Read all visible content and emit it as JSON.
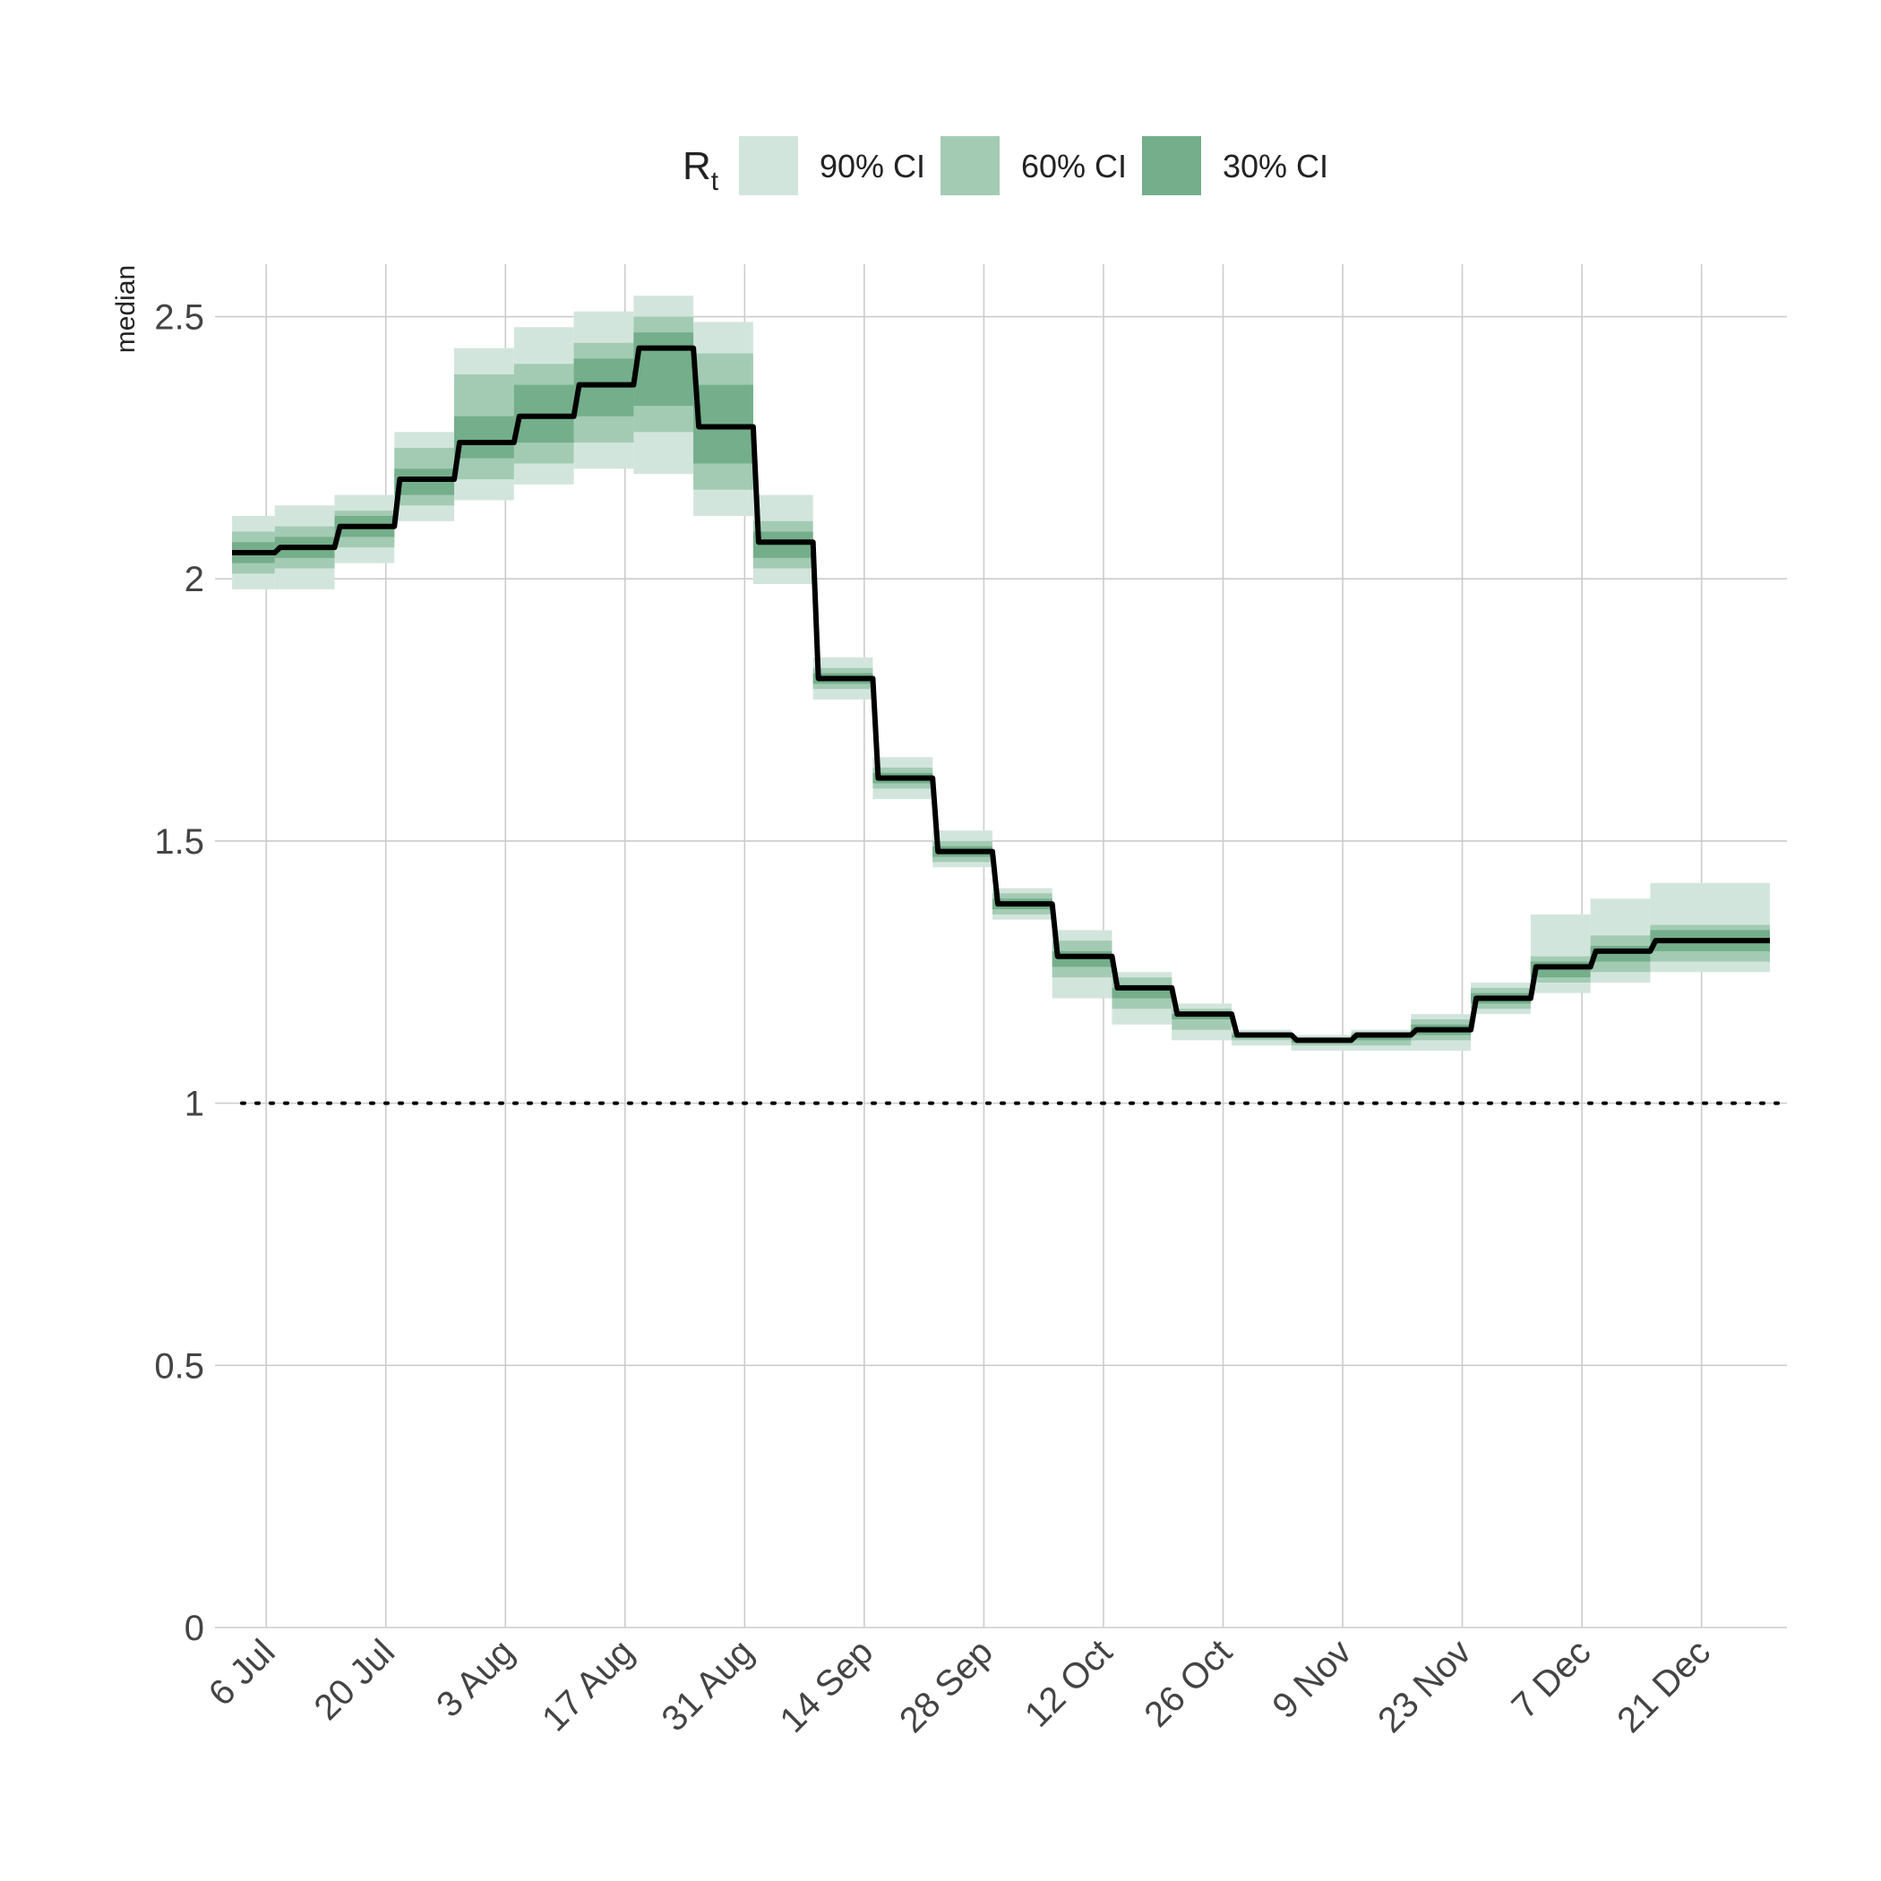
{
  "chart_data": {
    "type": "area",
    "ylabel": "median",
    "ylim": [
      0,
      2.6
    ],
    "yticks": [
      0,
      0.5,
      1,
      1.5,
      2,
      2.5
    ],
    "ytick_labels": [
      "0",
      "0.5",
      "1",
      "1.5",
      "2",
      "2.5"
    ],
    "x_range": [
      "2020-06-30",
      "2020-12-31"
    ],
    "xticks": [
      {
        "date": "2020-07-06",
        "label": "6 Jul"
      },
      {
        "date": "2020-07-20",
        "label": "20 Jul"
      },
      {
        "date": "2020-08-03",
        "label": "3 Aug"
      },
      {
        "date": "2020-08-17",
        "label": "17 Aug"
      },
      {
        "date": "2020-08-31",
        "label": "31 Aug"
      },
      {
        "date": "2020-09-14",
        "label": "14 Sep"
      },
      {
        "date": "2020-09-28",
        "label": "28 Sep"
      },
      {
        "date": "2020-10-12",
        "label": "12 Oct"
      },
      {
        "date": "2020-10-26",
        "label": "26 Oct"
      },
      {
        "date": "2020-11-09",
        "label": "9 Nov"
      },
      {
        "date": "2020-11-23",
        "label": "23 Nov"
      },
      {
        "date": "2020-12-07",
        "label": "7 Dec"
      },
      {
        "date": "2020-12-21",
        "label": "21 Dec"
      }
    ],
    "grid": true,
    "reference_line": {
      "y": 1,
      "style": "dotted"
    },
    "legend": {
      "position": "top",
      "title": "R",
      "title_subscript": "t",
      "entries": [
        {
          "label": "90% CI",
          "color": "#d2e5dc"
        },
        {
          "label": "60% CI",
          "color": "#a3cbb4"
        },
        {
          "label": "30% CI",
          "color": "#74ae8a"
        }
      ]
    },
    "colors": {
      "median_line": "#000000",
      "band_90": "#d2e5dc",
      "band_60": "#a3cbb4",
      "band_30": "#74ae8a",
      "grid": "#cccccc"
    },
    "segments": [
      {
        "start": "2020-07-02",
        "end": "2020-07-07",
        "median": 2.05,
        "ci90": [
          1.98,
          2.12
        ],
        "ci60": [
          2.01,
          2.09
        ],
        "ci30": [
          2.03,
          2.07
        ]
      },
      {
        "start": "2020-07-07",
        "end": "2020-07-14",
        "median": 2.06,
        "ci90": [
          1.98,
          2.14
        ],
        "ci60": [
          2.02,
          2.1
        ],
        "ci30": [
          2.04,
          2.08
        ]
      },
      {
        "start": "2020-07-14",
        "end": "2020-07-21",
        "median": 2.1,
        "ci90": [
          2.03,
          2.16
        ],
        "ci60": [
          2.06,
          2.13
        ],
        "ci30": [
          2.08,
          2.12
        ]
      },
      {
        "start": "2020-07-21",
        "end": "2020-07-28",
        "median": 2.19,
        "ci90": [
          2.11,
          2.28
        ],
        "ci60": [
          2.14,
          2.25
        ],
        "ci30": [
          2.16,
          2.21
        ]
      },
      {
        "start": "2020-07-28",
        "end": "2020-08-04",
        "median": 2.26,
        "ci90": [
          2.15,
          2.44
        ],
        "ci60": [
          2.19,
          2.39
        ],
        "ci30": [
          2.23,
          2.31
        ]
      },
      {
        "start": "2020-08-04",
        "end": "2020-08-11",
        "median": 2.31,
        "ci90": [
          2.18,
          2.48
        ],
        "ci60": [
          2.22,
          2.41
        ],
        "ci30": [
          2.26,
          2.37
        ]
      },
      {
        "start": "2020-08-11",
        "end": "2020-08-18",
        "median": 2.37,
        "ci90": [
          2.21,
          2.51
        ],
        "ci60": [
          2.26,
          2.45
        ],
        "ci30": [
          2.31,
          2.42
        ]
      },
      {
        "start": "2020-08-18",
        "end": "2020-08-25",
        "median": 2.44,
        "ci90": [
          2.2,
          2.54
        ],
        "ci60": [
          2.28,
          2.5
        ],
        "ci30": [
          2.33,
          2.47
        ]
      },
      {
        "start": "2020-08-25",
        "end": "2020-09-01",
        "median": 2.29,
        "ci90": [
          2.12,
          2.49
        ],
        "ci60": [
          2.17,
          2.43
        ],
        "ci30": [
          2.22,
          2.37
        ]
      },
      {
        "start": "2020-09-01",
        "end": "2020-09-08",
        "median": 2.07,
        "ci90": [
          1.99,
          2.16
        ],
        "ci60": [
          2.02,
          2.11
        ],
        "ci30": [
          2.04,
          2.09
        ]
      },
      {
        "start": "2020-09-08",
        "end": "2020-09-15",
        "median": 1.81,
        "ci90": [
          1.77,
          1.85
        ],
        "ci60": [
          1.79,
          1.83
        ],
        "ci30": [
          1.8,
          1.82
        ]
      },
      {
        "start": "2020-09-15",
        "end": "2020-09-22",
        "median": 1.62,
        "ci90": [
          1.58,
          1.66
        ],
        "ci60": [
          1.6,
          1.64
        ],
        "ci30": [
          1.61,
          1.63
        ]
      },
      {
        "start": "2020-09-22",
        "end": "2020-09-29",
        "median": 1.48,
        "ci90": [
          1.45,
          1.52
        ],
        "ci60": [
          1.46,
          1.5
        ],
        "ci30": [
          1.47,
          1.49
        ]
      },
      {
        "start": "2020-09-29",
        "end": "2020-10-06",
        "median": 1.38,
        "ci90": [
          1.35,
          1.41
        ],
        "ci60": [
          1.36,
          1.4
        ],
        "ci30": [
          1.37,
          1.39
        ]
      },
      {
        "start": "2020-10-06",
        "end": "2020-10-13",
        "median": 1.28,
        "ci90": [
          1.2,
          1.33
        ],
        "ci60": [
          1.24,
          1.31
        ],
        "ci30": [
          1.26,
          1.29
        ]
      },
      {
        "start": "2020-10-13",
        "end": "2020-10-20",
        "median": 1.22,
        "ci90": [
          1.15,
          1.25
        ],
        "ci60": [
          1.18,
          1.24
        ],
        "ci30": [
          1.2,
          1.22
        ]
      },
      {
        "start": "2020-10-20",
        "end": "2020-10-27",
        "median": 1.17,
        "ci90": [
          1.12,
          1.19
        ],
        "ci60": [
          1.14,
          1.18
        ],
        "ci30": [
          1.16,
          1.17
        ]
      },
      {
        "start": "2020-10-27",
        "end": "2020-11-03",
        "median": 1.13,
        "ci90": [
          1.11,
          1.14
        ],
        "ci60": [
          1.12,
          1.135
        ],
        "ci30": [
          1.125,
          1.13
        ]
      },
      {
        "start": "2020-11-03",
        "end": "2020-11-10",
        "median": 1.12,
        "ci90": [
          1.1,
          1.13
        ],
        "ci60": [
          1.11,
          1.125
        ],
        "ci30": [
          1.115,
          1.12
        ]
      },
      {
        "start": "2020-11-10",
        "end": "2020-11-17",
        "median": 1.13,
        "ci90": [
          1.1,
          1.14
        ],
        "ci60": [
          1.11,
          1.135
        ],
        "ci30": [
          1.12,
          1.13
        ]
      },
      {
        "start": "2020-11-17",
        "end": "2020-11-24",
        "median": 1.14,
        "ci90": [
          1.1,
          1.17
        ],
        "ci60": [
          1.12,
          1.16
        ],
        "ci30": [
          1.13,
          1.15
        ]
      },
      {
        "start": "2020-11-24",
        "end": "2020-12-01",
        "median": 1.2,
        "ci90": [
          1.17,
          1.23
        ],
        "ci60": [
          1.18,
          1.22
        ],
        "ci30": [
          1.19,
          1.21
        ]
      },
      {
        "start": "2020-12-01",
        "end": "2020-12-08",
        "median": 1.26,
        "ci90": [
          1.21,
          1.36
        ],
        "ci60": [
          1.23,
          1.28
        ],
        "ci30": [
          1.24,
          1.27
        ]
      },
      {
        "start": "2020-12-08",
        "end": "2020-12-15",
        "median": 1.29,
        "ci90": [
          1.23,
          1.39
        ],
        "ci60": [
          1.25,
          1.32
        ],
        "ci30": [
          1.27,
          1.3
        ]
      },
      {
        "start": "2020-12-15",
        "end": "2020-12-29",
        "median": 1.31,
        "ci90": [
          1.25,
          1.42
        ],
        "ci60": [
          1.27,
          1.34
        ],
        "ci30": [
          1.29,
          1.33
        ]
      }
    ]
  }
}
